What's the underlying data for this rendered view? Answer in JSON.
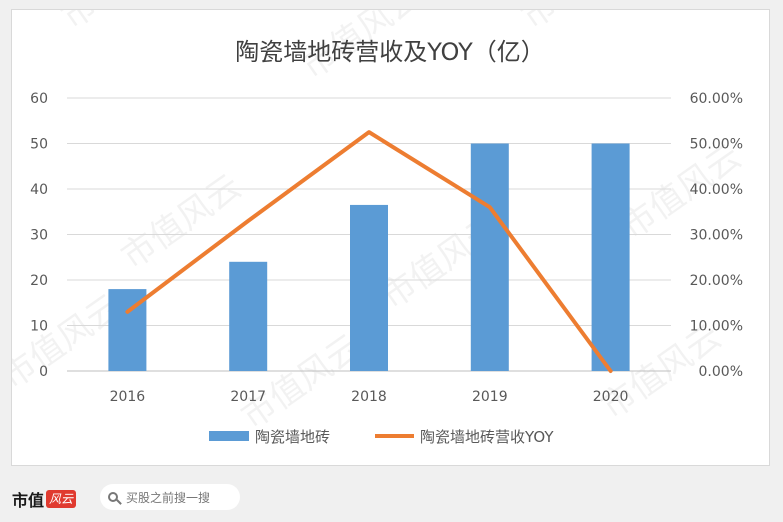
{
  "chart_data": {
    "type": "bar",
    "title": "陶瓷墙地砖营收及YOY（亿）",
    "categories": [
      "2016",
      "2017",
      "2018",
      "2019",
      "2020"
    ],
    "series": [
      {
        "name": "陶瓷墙地砖",
        "kind": "bar",
        "axis": "left",
        "values": [
          18,
          24,
          36.5,
          50,
          50
        ],
        "color": "#5b9bd5"
      },
      {
        "name": "陶瓷墙地砖营收YOY",
        "kind": "line",
        "axis": "right",
        "values": [
          0.13,
          0.33,
          0.525,
          0.36,
          0.0
        ],
        "color": "#ed7d31"
      }
    ],
    "y_left": {
      "lim": [
        0,
        60
      ],
      "ticks": [
        "0",
        "10",
        "20",
        "30",
        "40",
        "50",
        "60"
      ]
    },
    "y_right": {
      "lim": [
        0,
        0.6
      ],
      "ticks": [
        "0.00%",
        "10.00%",
        "20.00%",
        "30.00%",
        "40.00%",
        "50.00%",
        "60.00%"
      ]
    },
    "grid": true,
    "legend": "bottom"
  },
  "watermark": "市值风云",
  "footer": {
    "brand": "市值",
    "brand_logo": "风云",
    "search_placeholder": "买股之前搜一搜"
  }
}
